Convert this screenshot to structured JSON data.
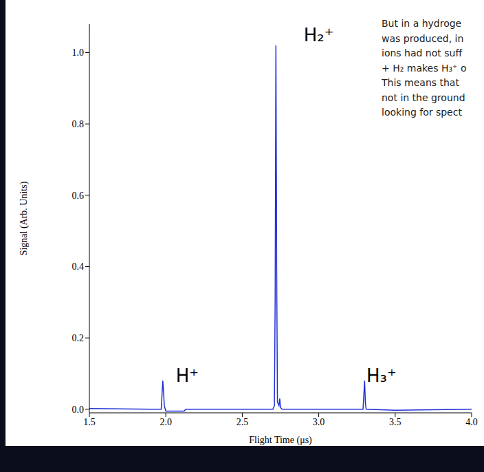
{
  "chart_data": {
    "type": "line",
    "x_label": "Flight Time (μs)",
    "y_label": "Signal (Arb. Units)",
    "xlim": [
      1.5,
      4.0
    ],
    "xticks": [
      1.5,
      {
        "value": 2,
        "label": "2.0"
      },
      2.5,
      {
        "value": 3,
        "label": "3.0"
      },
      3.5,
      {
        "value": 4,
        "label": "4.0"
      }
    ],
    "ylim": [
      -0.01,
      1.08
    ],
    "yticks": [
      {
        "value": 0,
        "label": "0.0"
      },
      0.2,
      0.4,
      0.6,
      0.8,
      {
        "value": 1,
        "label": "1.0"
      }
    ],
    "grid": false,
    "x": [
      1.5,
      1.9,
      1.97,
      1.975,
      1.98,
      1.985,
      1.99,
      2.0,
      2.12,
      2.13,
      2.7,
      2.71,
      2.715,
      2.72,
      2.725,
      2.73,
      2.74,
      2.745,
      2.75,
      2.76,
      3.29,
      3.295,
      3.3,
      3.305,
      3.31,
      3.5,
      4.0
    ],
    "values": [
      0.002,
      0.0,
      0.0,
      0.04,
      0.08,
      0.05,
      0.01,
      -0.005,
      -0.005,
      0.0,
      0.0,
      0.01,
      0.3,
      1.02,
      0.4,
      0.02,
      0.01,
      0.03,
      0.005,
      0.0,
      0.0,
      0.04,
      0.08,
      0.02,
      0.0,
      -0.003,
      0.0
    ],
    "color": "#1f2fd6",
    "annotations": [
      {
        "text": "H⁺",
        "x": 2.14,
        "y": 0.095
      },
      {
        "text": "H₂⁺",
        "x": 3.0,
        "y": 1.05
      },
      {
        "text": "H₃⁺",
        "x": 3.41,
        "y": 0.095
      }
    ],
    "text_box": [
      "But in a hydroge",
      "was produced, in",
      "ions had not suff",
      "+ H₂ makes H₃⁺ o",
      "This means that",
      "not in the ground",
      "looking for spect"
    ]
  }
}
